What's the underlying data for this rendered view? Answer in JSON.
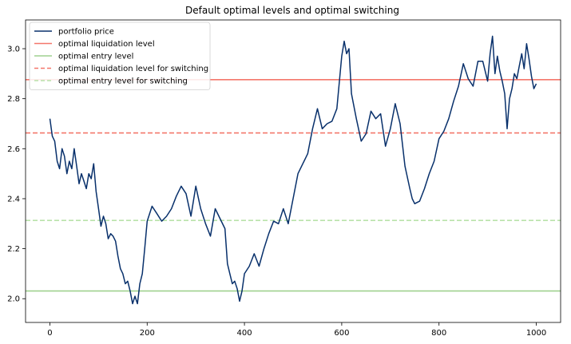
{
  "chart_data": {
    "type": "line",
    "title": "Default optimal levels and optimal switching",
    "xlabel": "",
    "ylabel": "",
    "xlim": [
      -50,
      1050
    ],
    "ylim": [
      1.905,
      3.115
    ],
    "x_ticks": [
      0,
      200,
      400,
      600,
      800,
      1000
    ],
    "y_ticks": [
      2.0,
      2.2,
      2.4,
      2.6,
      2.8,
      3.0
    ],
    "x_tick_labels": [
      "0",
      "200",
      "400",
      "600",
      "800",
      "1000"
    ],
    "y_tick_labels": [
      "2.0",
      "2.2",
      "2.4",
      "2.6",
      "2.8",
      "3.0"
    ],
    "grid": false,
    "legend_position": "top-left",
    "series": [
      {
        "name": "portfolio price",
        "color": "#08306b",
        "style": "solid",
        "x": [
          0,
          5,
          10,
          15,
          20,
          25,
          30,
          35,
          40,
          45,
          50,
          55,
          60,
          65,
          70,
          75,
          80,
          85,
          90,
          95,
          100,
          105,
          110,
          115,
          120,
          125,
          130,
          135,
          140,
          145,
          150,
          155,
          160,
          165,
          170,
          175,
          180,
          185,
          190,
          195,
          200,
          210,
          220,
          230,
          240,
          250,
          260,
          270,
          280,
          290,
          300,
          310,
          320,
          330,
          340,
          350,
          360,
          365,
          370,
          375,
          380,
          385,
          390,
          395,
          400,
          410,
          420,
          430,
          440,
          450,
          460,
          470,
          480,
          490,
          500,
          510,
          520,
          530,
          540,
          550,
          560,
          570,
          580,
          590,
          600,
          605,
          610,
          615,
          620,
          630,
          640,
          650,
          660,
          670,
          680,
          690,
          700,
          710,
          720,
          730,
          740,
          745,
          750,
          760,
          770,
          780,
          790,
          800,
          810,
          820,
          830,
          840,
          850,
          860,
          870,
          880,
          890,
          900,
          905,
          910,
          915,
          920,
          925,
          930,
          935,
          940,
          945,
          950,
          955,
          960,
          965,
          970,
          975,
          980,
          985,
          990,
          995,
          1000
        ],
        "y": [
          2.72,
          2.65,
          2.63,
          2.55,
          2.52,
          2.6,
          2.57,
          2.5,
          2.55,
          2.52,
          2.6,
          2.53,
          2.46,
          2.5,
          2.47,
          2.44,
          2.5,
          2.48,
          2.54,
          2.43,
          2.36,
          2.29,
          2.33,
          2.3,
          2.24,
          2.26,
          2.25,
          2.23,
          2.17,
          2.12,
          2.1,
          2.06,
          2.07,
          2.03,
          1.98,
          2.01,
          1.98,
          2.06,
          2.1,
          2.2,
          2.31,
          2.37,
          2.34,
          2.31,
          2.33,
          2.36,
          2.41,
          2.45,
          2.42,
          2.33,
          2.45,
          2.36,
          2.3,
          2.25,
          2.36,
          2.32,
          2.28,
          2.14,
          2.1,
          2.06,
          2.07,
          2.04,
          1.99,
          2.03,
          2.1,
          2.13,
          2.18,
          2.13,
          2.2,
          2.26,
          2.31,
          2.3,
          2.36,
          2.3,
          2.4,
          2.5,
          2.54,
          2.58,
          2.68,
          2.76,
          2.68,
          2.7,
          2.71,
          2.76,
          2.97,
          3.03,
          2.98,
          3.0,
          2.82,
          2.72,
          2.63,
          2.66,
          2.75,
          2.72,
          2.74,
          2.61,
          2.68,
          2.78,
          2.7,
          2.53,
          2.44,
          2.4,
          2.38,
          2.39,
          2.44,
          2.5,
          2.55,
          2.64,
          2.67,
          2.72,
          2.79,
          2.85,
          2.94,
          2.88,
          2.85,
          2.95,
          2.95,
          2.87,
          2.98,
          3.05,
          2.9,
          2.97,
          2.91,
          2.87,
          2.82,
          2.68,
          2.8,
          2.84,
          2.9,
          2.88,
          2.93,
          2.98,
          2.92,
          3.02,
          2.96,
          2.89,
          2.84,
          2.86
        ]
      }
    ],
    "horizontal_lines": [
      {
        "name": "optimal liquidation level",
        "value": 2.876,
        "color": "#f4776b",
        "style": "solid"
      },
      {
        "name": "optimal entry level",
        "value": 2.031,
        "color": "#9fd18f",
        "style": "solid"
      },
      {
        "name": "optimal liquidation level for switching",
        "value": 2.663,
        "color": "#f4776b",
        "style": "dashed"
      },
      {
        "name": "optimal entry level for switching",
        "value": 2.313,
        "color": "#b9e2aa",
        "style": "dashed"
      }
    ]
  }
}
